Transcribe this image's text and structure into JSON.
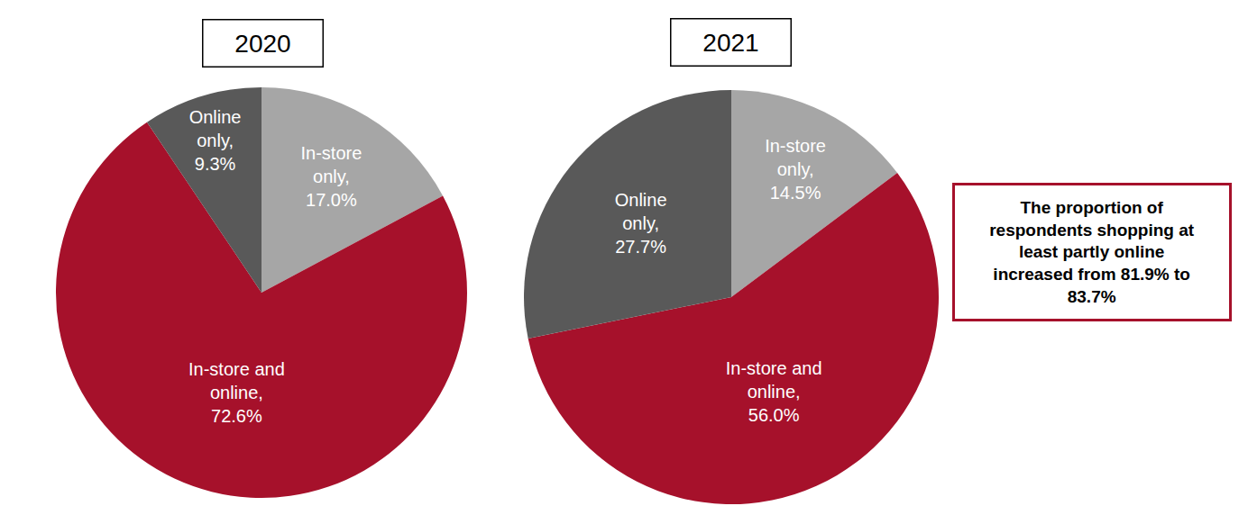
{
  "chart_data": [
    {
      "type": "pie",
      "title": "2020",
      "categories": [
        "In-store only",
        "In-store and online",
        "Online only"
      ],
      "values": [
        17.0,
        72.6,
        9.3
      ],
      "value_labels": [
        "In-store\nonly,\n17.0%",
        "In-store and\nonline,\n72.6%",
        "Online\nonly,\n9.3%"
      ],
      "colors": [
        "#a6a6a6",
        "#a6112b",
        "#595959"
      ],
      "data_labels": true,
      "legend": false
    },
    {
      "type": "pie",
      "title": "2021",
      "categories": [
        "In-store only",
        "In-store and online",
        "Online only"
      ],
      "values": [
        14.5,
        56.0,
        27.7
      ],
      "value_labels": [
        "In-store\nonly,\n14.5%",
        "In-store and\nonline,\n56.0%",
        "Online\nonly,\n27.7%"
      ],
      "colors": [
        "#a6a6a6",
        "#a6112b",
        "#595959"
      ],
      "data_labels": true,
      "legend": false,
      "annotations": [
        "The proportion of\nrespondents shopping at\nleast partly online\nincreased from 81.9% to\n83.7%"
      ]
    }
  ]
}
